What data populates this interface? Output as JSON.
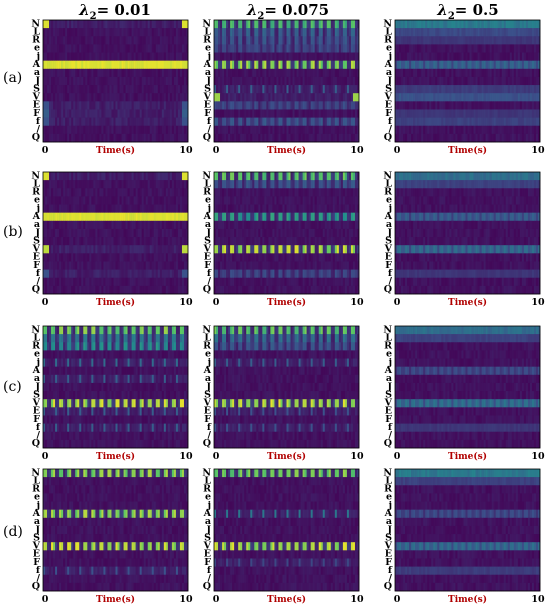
{
  "chart_data": {
    "type": "heatmap",
    "column_titles": [
      {
        "symbol": "λ",
        "subscript": "2",
        "value": "= 0.01"
      },
      {
        "symbol": "λ",
        "subscript": "2",
        "value": "= 0.075"
      },
      {
        "symbol": "λ",
        "subscript": "2",
        "value": "= 0.5"
      }
    ],
    "row_labels": [
      "(a)",
      "(b)",
      "(c)",
      "(d)"
    ],
    "class_labels": [
      "N",
      "L",
      "R",
      "e",
      "j",
      "A",
      "a",
      "J",
      "S",
      "V",
      "E",
      "F",
      "f",
      "/",
      "Q"
    ],
    "xlabel": "Time(s)",
    "x_ticks": [
      "0",
      "10"
    ],
    "xlim": [
      0,
      10
    ],
    "colormap": [
      "#440154",
      "#3b528b",
      "#21908d",
      "#5dc863",
      "#fde725"
    ],
    "panels": [
      {
        "row": "(a)",
        "lambda2": 0.01,
        "bands": [
          {
            "class": "N",
            "pattern": "edges",
            "intensity": 0.95
          },
          {
            "class": "A",
            "pattern": "solid",
            "intensity": 0.97
          },
          {
            "class": "E",
            "pattern": "edges",
            "intensity": 0.25
          },
          {
            "class": "F",
            "pattern": "edges",
            "intensity": 0.3
          },
          {
            "class": "f",
            "pattern": "edges",
            "intensity": 0.25
          }
        ]
      },
      {
        "row": "(a)",
        "lambda2": 0.075,
        "bands": [
          {
            "class": "N",
            "pattern": "dense",
            "intensity": 0.75
          },
          {
            "class": "L",
            "pattern": "dense",
            "intensity": 0.35
          },
          {
            "class": "R",
            "pattern": "dense",
            "intensity": 0.3
          },
          {
            "class": "e",
            "pattern": "dense",
            "intensity": 0.25
          },
          {
            "class": "A",
            "pattern": "dense",
            "intensity": 0.9
          },
          {
            "class": "S",
            "pattern": "sparse",
            "intensity": 0.3
          },
          {
            "class": "V",
            "pattern": "edges",
            "intensity": 0.85
          },
          {
            "class": "E",
            "pattern": "dense",
            "intensity": 0.25
          },
          {
            "class": "f",
            "pattern": "dense",
            "intensity": 0.3
          }
        ]
      },
      {
        "row": "(a)",
        "lambda2": 0.5,
        "bands": [
          {
            "class": "N",
            "pattern": "smooth",
            "intensity": 0.45
          },
          {
            "class": "L",
            "pattern": "smooth",
            "intensity": 0.25
          },
          {
            "class": "R",
            "pattern": "smooth",
            "intensity": 0.18
          },
          {
            "class": "A",
            "pattern": "striped",
            "intensity": 0.35
          },
          {
            "class": "S",
            "pattern": "smooth",
            "intensity": 0.2
          },
          {
            "class": "V",
            "pattern": "smooth",
            "intensity": 0.28
          },
          {
            "class": "F",
            "pattern": "smooth",
            "intensity": 0.18
          },
          {
            "class": "f",
            "pattern": "smooth",
            "intensity": 0.22
          }
        ]
      },
      {
        "row": "(b)",
        "lambda2": 0.01,
        "bands": [
          {
            "class": "N",
            "pattern": "edges",
            "intensity": 0.95
          },
          {
            "class": "A",
            "pattern": "solid",
            "intensity": 0.97
          },
          {
            "class": "V",
            "pattern": "edges",
            "intensity": 0.9
          },
          {
            "class": "f",
            "pattern": "edges",
            "intensity": 0.25
          }
        ]
      },
      {
        "row": "(b)",
        "lambda2": 0.075,
        "bands": [
          {
            "class": "N",
            "pattern": "dense",
            "intensity": 0.8
          },
          {
            "class": "L",
            "pattern": "dense",
            "intensity": 0.3
          },
          {
            "class": "A",
            "pattern": "dense",
            "intensity": 0.6
          },
          {
            "class": "V",
            "pattern": "dense",
            "intensity": 0.95
          },
          {
            "class": "f",
            "pattern": "dense",
            "intensity": 0.25
          }
        ]
      },
      {
        "row": "(b)",
        "lambda2": 0.5,
        "bands": [
          {
            "class": "N",
            "pattern": "smooth",
            "intensity": 0.4
          },
          {
            "class": "L",
            "pattern": "smooth",
            "intensity": 0.22
          },
          {
            "class": "A",
            "pattern": "striped",
            "intensity": 0.32
          },
          {
            "class": "V",
            "pattern": "striped",
            "intensity": 0.38
          },
          {
            "class": "f",
            "pattern": "smooth",
            "intensity": 0.18
          }
        ]
      },
      {
        "row": "(c)",
        "lambda2": 0.01,
        "bands": [
          {
            "class": "N",
            "pattern": "dense",
            "intensity": 0.85
          },
          {
            "class": "L",
            "pattern": "dense",
            "intensity": 0.45
          },
          {
            "class": "R",
            "pattern": "dense",
            "intensity": 0.55
          },
          {
            "class": "j",
            "pattern": "sparse",
            "intensity": 0.35
          },
          {
            "class": "a",
            "pattern": "sparse",
            "intensity": 0.3
          },
          {
            "class": "V",
            "pattern": "dense",
            "intensity": 0.97
          },
          {
            "class": "E",
            "pattern": "sparse",
            "intensity": 0.3
          },
          {
            "class": "f",
            "pattern": "sparse",
            "intensity": 0.3
          }
        ]
      },
      {
        "row": "(c)",
        "lambda2": 0.075,
        "bands": [
          {
            "class": "N",
            "pattern": "dense",
            "intensity": 0.8
          },
          {
            "class": "L",
            "pattern": "dense",
            "intensity": 0.4
          },
          {
            "class": "R",
            "pattern": "dense",
            "intensity": 0.3
          },
          {
            "class": "j",
            "pattern": "sparse",
            "intensity": 0.3
          },
          {
            "class": "V",
            "pattern": "dense",
            "intensity": 0.97
          },
          {
            "class": "E",
            "pattern": "sparse",
            "intensity": 0.25
          },
          {
            "class": "f",
            "pattern": "sparse",
            "intensity": 0.25
          }
        ]
      },
      {
        "row": "(c)",
        "lambda2": 0.5,
        "bands": [
          {
            "class": "N",
            "pattern": "smooth",
            "intensity": 0.4
          },
          {
            "class": "L",
            "pattern": "smooth",
            "intensity": 0.22
          },
          {
            "class": "A",
            "pattern": "striped",
            "intensity": 0.25
          },
          {
            "class": "V",
            "pattern": "striped",
            "intensity": 0.4
          },
          {
            "class": "f",
            "pattern": "smooth",
            "intensity": 0.18
          }
        ]
      },
      {
        "row": "(d)",
        "lambda2": 0.01,
        "bands": [
          {
            "class": "N",
            "pattern": "dense",
            "intensity": 0.9
          },
          {
            "class": "A",
            "pattern": "dense",
            "intensity": 0.9
          },
          {
            "class": "V",
            "pattern": "dense",
            "intensity": 0.97
          },
          {
            "class": "f",
            "pattern": "sparse",
            "intensity": 0.25
          }
        ]
      },
      {
        "row": "(d)",
        "lambda2": 0.075,
        "bands": [
          {
            "class": "N",
            "pattern": "dense",
            "intensity": 0.85
          },
          {
            "class": "A",
            "pattern": "sparse",
            "intensity": 0.4
          },
          {
            "class": "V",
            "pattern": "dense",
            "intensity": 0.97
          },
          {
            "class": "F",
            "pattern": "sparse",
            "intensity": 0.22
          }
        ]
      },
      {
        "row": "(d)",
        "lambda2": 0.5,
        "bands": [
          {
            "class": "N",
            "pattern": "smooth",
            "intensity": 0.45
          },
          {
            "class": "L",
            "pattern": "smooth",
            "intensity": 0.22
          },
          {
            "class": "A",
            "pattern": "striped",
            "intensity": 0.25
          },
          {
            "class": "V",
            "pattern": "striped",
            "intensity": 0.38
          },
          {
            "class": "f",
            "pattern": "smooth",
            "intensity": 0.2
          }
        ]
      }
    ]
  }
}
